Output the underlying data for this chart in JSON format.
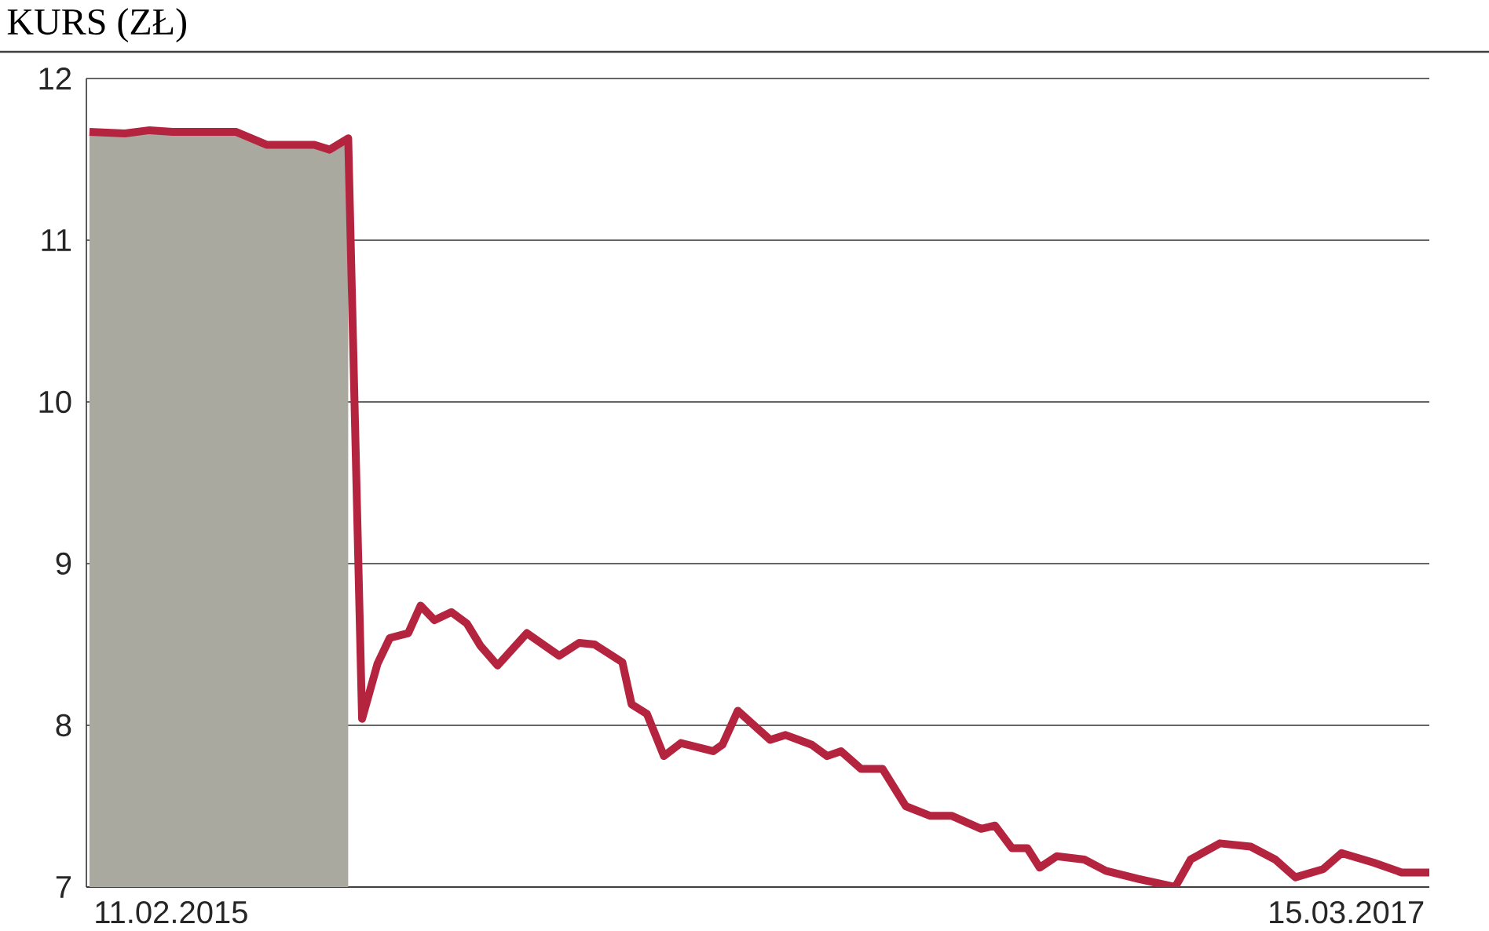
{
  "chart_data": {
    "type": "line",
    "title": "KURS (ZŁ)",
    "xlim": [
      "2014-12-18",
      "2017-05-08"
    ],
    "xticks": [
      {
        "value": "2015-02-11",
        "label": "11.02.2015"
      },
      {
        "value": "2017-03-15",
        "label": "15.03.2017"
      }
    ],
    "series": [
      {
        "type": "area",
        "color": "#a9a9a0",
        "x": [
          "2014-12-20",
          "2015-01-12",
          "2015-01-28",
          "2015-02-12",
          "2015-03-25",
          "2015-04-14",
          "2015-05-15",
          "2015-05-25",
          "2015-06-06"
        ],
        "values": [
          11.67,
          11.66,
          11.68,
          11.67,
          11.67,
          11.59,
          11.59,
          11.56,
          11.63
        ]
      },
      {
        "color": "#b5243f",
        "x": [
          "2014-12-20",
          "2015-01-12",
          "2015-01-28",
          "2015-02-12",
          "2015-03-25",
          "2015-04-14",
          "2015-05-15",
          "2015-05-25",
          "2015-06-06",
          "2015-06-15",
          "2015-06-25",
          "2015-07-03",
          "2015-07-15",
          "2015-07-23",
          "2015-08-01",
          "2015-08-12",
          "2015-08-22",
          "2015-08-31",
          "2015-09-11",
          "2015-09-30",
          "2015-10-21",
          "2015-11-03",
          "2015-11-13",
          "2015-12-01",
          "2015-12-07",
          "2015-12-17",
          "2015-12-28",
          "2016-01-08",
          "2016-01-29",
          "2016-02-04",
          "2016-02-14",
          "2016-03-06",
          "2016-03-16",
          "2016-04-02",
          "2016-04-12",
          "2016-04-21",
          "2016-05-04",
          "2016-05-18",
          "2016-06-02",
          "2016-06-18",
          "2016-07-02",
          "2016-07-21",
          "2016-07-30",
          "2016-08-10",
          "2016-08-20",
          "2016-08-28",
          "2016-09-08",
          "2016-09-26",
          "2016-10-10",
          "2016-10-31",
          "2016-11-24",
          "2016-12-04",
          "2016-12-23",
          "2017-01-12",
          "2017-01-28",
          "2017-02-10",
          "2017-02-28",
          "2017-03-12",
          "2017-04-02",
          "2017-04-20",
          "2017-05-08"
        ],
        "values": [
          11.67,
          11.66,
          11.68,
          11.67,
          11.67,
          11.59,
          11.59,
          11.56,
          11.63,
          8.04,
          8.38,
          8.54,
          8.57,
          8.74,
          8.65,
          8.7,
          8.63,
          8.49,
          8.37,
          8.57,
          8.43,
          8.51,
          8.5,
          8.39,
          8.13,
          8.07,
          7.81,
          7.89,
          7.84,
          7.88,
          8.09,
          7.91,
          7.94,
          7.88,
          7.81,
          7.84,
          7.73,
          7.73,
          7.5,
          7.44,
          7.44,
          7.36,
          7.38,
          7.24,
          7.24,
          7.12,
          7.19,
          7.17,
          7.1,
          7.05,
          7.0,
          7.17,
          7.27,
          7.25,
          7.17,
          7.06,
          7.11,
          7.21,
          7.15,
          7.09,
          7.09
        ]
      }
    ],
    "ylim": [
      7,
      12
    ],
    "yticks": [
      7,
      8,
      9,
      10,
      11,
      12
    ],
    "grid": "y",
    "line_style": "solid",
    "marker": "none"
  }
}
